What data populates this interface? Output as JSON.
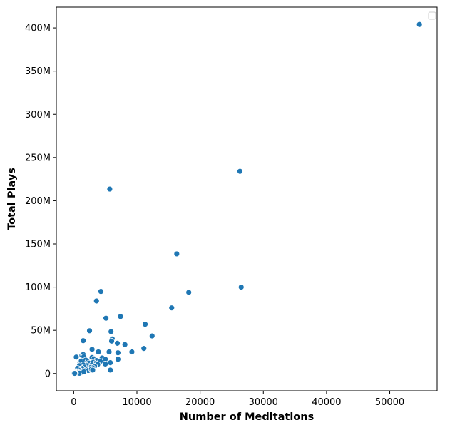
{
  "chart_data": {
    "type": "scatter",
    "title": "",
    "xlabel": "Number of Meditations",
    "ylabel": "Total Plays",
    "xlim": [
      -2750,
      57500
    ],
    "ylim": [
      -20000000,
      424000000
    ],
    "xticks": [
      0,
      10000,
      20000,
      30000,
      40000,
      50000
    ],
    "xtick_labels": [
      "0",
      "10000",
      "20000",
      "30000",
      "40000",
      "50000"
    ],
    "yticks": [
      0,
      50000000,
      100000000,
      150000000,
      200000000,
      250000000,
      300000000,
      350000000,
      400000000
    ],
    "ytick_labels": [
      "0",
      "50M",
      "100M",
      "150M",
      "200M",
      "250M",
      "300M",
      "350M",
      "400M"
    ],
    "grid": false,
    "legend": "top-right",
    "colors": {
      "marker": "#1f77b4",
      "marker_edge": "#ffffff",
      "axes": "#000000"
    },
    "x": [
      54700,
      26300,
      5700,
      16300,
      18200,
      26500,
      15500,
      4300,
      3600,
      7400,
      5100,
      11300,
      2500,
      5900,
      12400,
      6100,
      6000,
      1500,
      8100,
      6900,
      11100,
      9200,
      2900,
      3900,
      5600,
      7000,
      400,
      1300,
      1500,
      1600,
      4500,
      5000,
      7000,
      2900,
      3200,
      3600,
      4200,
      5800,
      5000,
      1000,
      1200,
      1900,
      2200,
      2400,
      3100,
      3400,
      3800,
      2900,
      3300,
      2000,
      1500,
      2100,
      2700,
      3000,
      1700,
      900,
      1300,
      2200,
      2500,
      1100,
      1400,
      600,
      1000,
      1800,
      2300,
      2800,
      400,
      700,
      1200,
      1600,
      300,
      500,
      800,
      1100,
      200,
      600,
      900,
      300,
      100,
      200,
      50,
      150,
      5800,
      3000,
      1600
    ],
    "y": [
      404000000,
      234000000,
      213500000,
      138500000,
      94000000,
      100000000,
      76000000,
      95000000,
      84000000,
      66000000,
      64000000,
      57000000,
      49500000,
      48500000,
      43500000,
      40000000,
      37500000,
      38000000,
      33500000,
      35000000,
      29000000,
      25000000,
      28000000,
      25000000,
      25000000,
      24000000,
      19000000,
      21000000,
      22000000,
      19500000,
      18000000,
      16500000,
      16500000,
      18500000,
      17000000,
      15000000,
      14000000,
      12500000,
      11000000,
      13000000,
      14500000,
      15500000,
      13500000,
      12000000,
      13000000,
      11500000,
      10500000,
      10000000,
      8500000,
      9500000,
      10000000,
      8000000,
      7000000,
      6500000,
      7500000,
      9000000,
      6000000,
      5500000,
      4000000,
      5000000,
      4500000,
      6000000,
      3500000,
      3000000,
      3500000,
      5000000,
      2500000,
      2000000,
      2500000,
      1500000,
      1500000,
      1000000,
      1000000,
      800000,
      500000,
      600000,
      300000,
      200000,
      100000,
      700000,
      300000,
      150000,
      4000000,
      4000000,
      2000000
    ]
  }
}
